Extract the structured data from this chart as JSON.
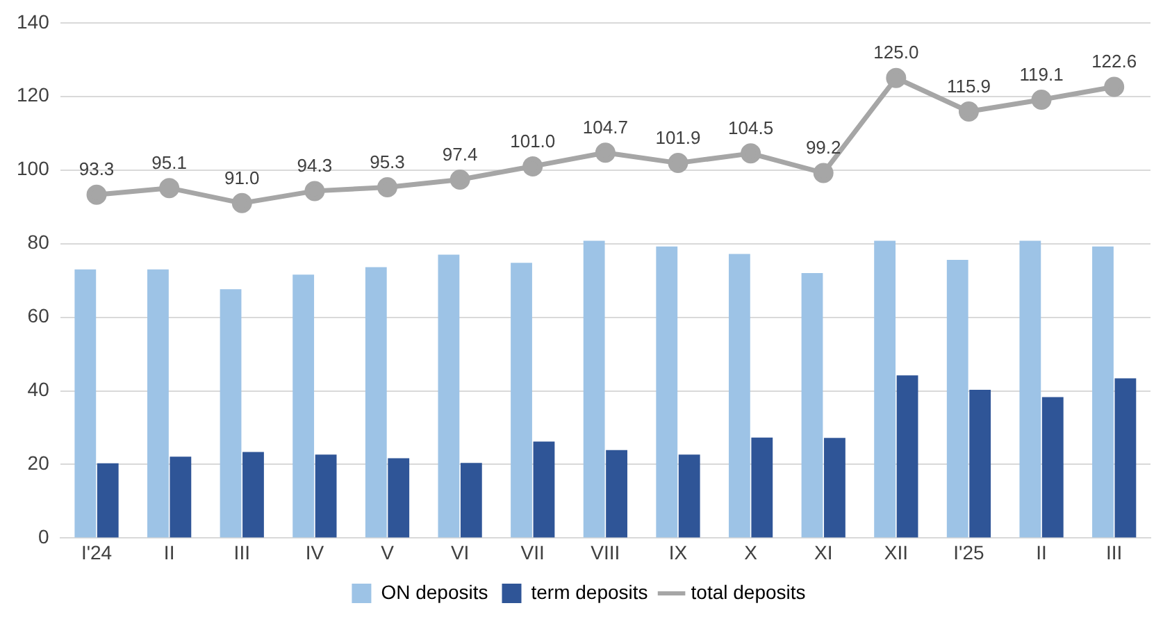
{
  "chart_data": {
    "type": "bar",
    "categories": [
      "I'24",
      "II",
      "III",
      "IV",
      "V",
      "VI",
      "VII",
      "VIII",
      "IX",
      "X",
      "XI",
      "XII",
      "I'25",
      "II",
      "III"
    ],
    "series": [
      {
        "name": "ON deposits",
        "color": "#9dc3e6",
        "values": [
          73.0,
          73.0,
          67.6,
          71.6,
          73.6,
          77.0,
          74.8,
          80.8,
          79.2,
          77.2,
          72.0,
          80.8,
          75.6,
          80.8,
          79.2
        ]
      },
      {
        "name": "term deposits",
        "color": "#2f5597",
        "values": [
          20.3,
          22.1,
          23.4,
          22.7,
          21.7,
          20.4,
          26.2,
          23.9,
          22.7,
          27.3,
          27.2,
          44.2,
          40.3,
          38.3,
          43.4
        ]
      },
      {
        "name": "total deposits",
        "type": "line",
        "color": "#a6a6a6",
        "marker": "circle",
        "values": [
          93.3,
          95.1,
          91.0,
          94.3,
          95.3,
          97.4,
          101.0,
          104.7,
          101.9,
          104.5,
          99.2,
          125.0,
          115.9,
          119.1,
          122.6
        ],
        "value_labels": [
          "93.3",
          "95.1",
          "91.0",
          "94.3",
          "95.3",
          "97.4",
          "101.0",
          "104.7",
          "101.9",
          "104.5",
          "99.2",
          "125.0",
          "115.9",
          "119.1",
          "122.6"
        ]
      }
    ],
    "ylim": [
      0,
      140
    ],
    "yticks": [
      0,
      20,
      40,
      60,
      80,
      100,
      120,
      140
    ],
    "grid": "y",
    "legend": "bottom"
  }
}
